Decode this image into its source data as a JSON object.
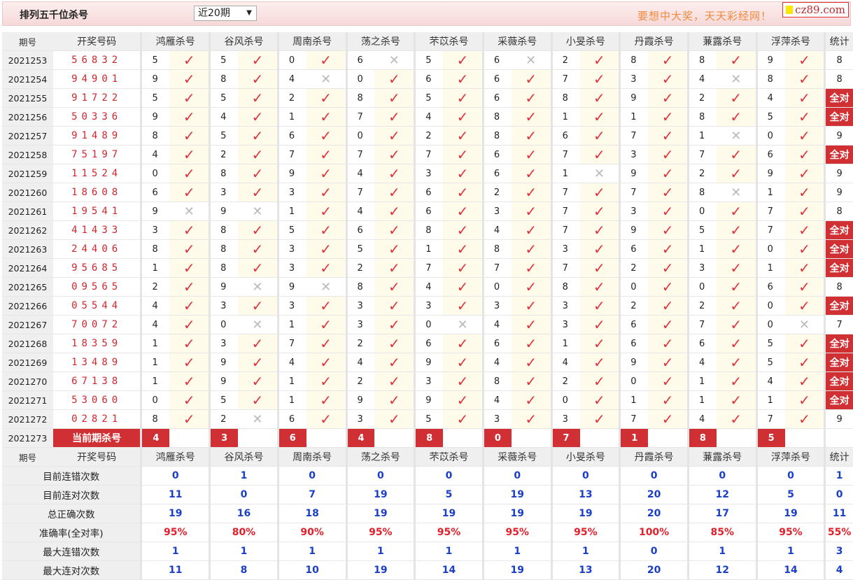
{
  "header": {
    "title": "排列五千位杀号",
    "period_select": "近20期",
    "slogan": "要想中大奖，天天彩经网！",
    "logo": "cz89.com"
  },
  "colors": {
    "accent_red": "#d03034",
    "check": "#e0323c",
    "stat_blue": "#1a3ec8"
  },
  "columns": {
    "issue": "期号",
    "draw": "开奖号码",
    "experts": [
      "鸿雁杀号",
      "谷风杀号",
      "周南杀号",
      "荡之杀号",
      "芣苡杀号",
      "采薇杀号",
      "小旻杀号",
      "丹霞杀号",
      "蒹露杀号",
      "浮萍杀号"
    ],
    "stat": "统计"
  },
  "rows": [
    {
      "issue": "2021253",
      "draw": "56832",
      "kills": [
        "5",
        "5",
        "0",
        "6",
        "5",
        "6",
        "2",
        "8",
        "8",
        "9"
      ],
      "ok": [
        1,
        1,
        1,
        0,
        1,
        0,
        1,
        1,
        1,
        1
      ],
      "stat": "8"
    },
    {
      "issue": "2021254",
      "draw": "94901",
      "kills": [
        "9",
        "8",
        "4",
        "0",
        "6",
        "6",
        "7",
        "3",
        "4",
        "8"
      ],
      "ok": [
        1,
        1,
        0,
        1,
        1,
        1,
        1,
        1,
        0,
        1
      ],
      "stat": "8"
    },
    {
      "issue": "2021255",
      "draw": "91722",
      "kills": [
        "5",
        "5",
        "2",
        "8",
        "5",
        "6",
        "8",
        "9",
        "2",
        "4"
      ],
      "ok": [
        1,
        1,
        1,
        1,
        1,
        1,
        1,
        1,
        1,
        1
      ],
      "stat": "全对"
    },
    {
      "issue": "2021256",
      "draw": "50336",
      "kills": [
        "9",
        "4",
        "1",
        "7",
        "4",
        "8",
        "1",
        "1",
        "8",
        "5"
      ],
      "ok": [
        1,
        1,
        1,
        1,
        1,
        1,
        1,
        1,
        1,
        1
      ],
      "stat": "全对"
    },
    {
      "issue": "2021257",
      "draw": "91489",
      "kills": [
        "8",
        "5",
        "6",
        "0",
        "2",
        "8",
        "6",
        "7",
        "1",
        "0"
      ],
      "ok": [
        1,
        1,
        1,
        1,
        1,
        1,
        1,
        1,
        0,
        1
      ],
      "stat": "9"
    },
    {
      "issue": "2021258",
      "draw": "75197",
      "kills": [
        "4",
        "2",
        "7",
        "7",
        "7",
        "6",
        "7",
        "3",
        "7",
        "6"
      ],
      "ok": [
        1,
        1,
        1,
        1,
        1,
        1,
        1,
        1,
        1,
        1
      ],
      "stat": "全对"
    },
    {
      "issue": "2021259",
      "draw": "11524",
      "kills": [
        "0",
        "8",
        "9",
        "4",
        "3",
        "6",
        "1",
        "9",
        "2",
        "9"
      ],
      "ok": [
        1,
        1,
        1,
        1,
        1,
        1,
        0,
        1,
        1,
        1
      ],
      "stat": "9"
    },
    {
      "issue": "2021260",
      "draw": "18608",
      "kills": [
        "6",
        "3",
        "3",
        "7",
        "6",
        "2",
        "7",
        "7",
        "8",
        "1"
      ],
      "ok": [
        1,
        1,
        1,
        1,
        1,
        1,
        1,
        1,
        0,
        1
      ],
      "stat": "9"
    },
    {
      "issue": "2021261",
      "draw": "19541",
      "kills": [
        "9",
        "9",
        "1",
        "4",
        "6",
        "3",
        "7",
        "3",
        "0",
        "7"
      ],
      "ok": [
        0,
        0,
        1,
        1,
        1,
        1,
        1,
        1,
        1,
        1
      ],
      "stat": "8"
    },
    {
      "issue": "2021262",
      "draw": "41433",
      "kills": [
        "3",
        "8",
        "5",
        "6",
        "8",
        "4",
        "7",
        "9",
        "5",
        "7"
      ],
      "ok": [
        1,
        1,
        1,
        1,
        1,
        1,
        1,
        1,
        1,
        1
      ],
      "stat": "全对"
    },
    {
      "issue": "2021263",
      "draw": "24406",
      "kills": [
        "8",
        "8",
        "3",
        "5",
        "1",
        "8",
        "3",
        "6",
        "1",
        "0"
      ],
      "ok": [
        1,
        1,
        1,
        1,
        1,
        1,
        1,
        1,
        1,
        1
      ],
      "stat": "全对"
    },
    {
      "issue": "2021264",
      "draw": "95685",
      "kills": [
        "1",
        "8",
        "3",
        "2",
        "7",
        "7",
        "7",
        "2",
        "3",
        "1"
      ],
      "ok": [
        1,
        1,
        1,
        1,
        1,
        1,
        1,
        1,
        1,
        1
      ],
      "stat": "全对"
    },
    {
      "issue": "2021265",
      "draw": "09565",
      "kills": [
        "2",
        "9",
        "9",
        "8",
        "4",
        "0",
        "8",
        "0",
        "0",
        "6"
      ],
      "ok": [
        1,
        0,
        0,
        1,
        1,
        1,
        1,
        1,
        1,
        1
      ],
      "stat": "8"
    },
    {
      "issue": "2021266",
      "draw": "05544",
      "kills": [
        "4",
        "3",
        "3",
        "3",
        "3",
        "3",
        "3",
        "2",
        "2",
        "0"
      ],
      "ok": [
        1,
        1,
        1,
        1,
        1,
        1,
        1,
        1,
        1,
        1
      ],
      "stat": "全对"
    },
    {
      "issue": "2021267",
      "draw": "70072",
      "kills": [
        "4",
        "0",
        "1",
        "3",
        "0",
        "4",
        "3",
        "6",
        "7",
        "0"
      ],
      "ok": [
        1,
        0,
        1,
        1,
        0,
        1,
        1,
        1,
        1,
        0
      ],
      "stat": "7"
    },
    {
      "issue": "2021268",
      "draw": "18359",
      "kills": [
        "1",
        "3",
        "7",
        "2",
        "6",
        "6",
        "1",
        "6",
        "6",
        "5"
      ],
      "ok": [
        1,
        1,
        1,
        1,
        1,
        1,
        1,
        1,
        1,
        1
      ],
      "stat": "全对"
    },
    {
      "issue": "2021269",
      "draw": "13489",
      "kills": [
        "1",
        "9",
        "4",
        "4",
        "9",
        "4",
        "4",
        "9",
        "4",
        "5"
      ],
      "ok": [
        1,
        1,
        1,
        1,
        1,
        1,
        1,
        1,
        1,
        1
      ],
      "stat": "全对"
    },
    {
      "issue": "2021270",
      "draw": "67138",
      "kills": [
        "1",
        "9",
        "1",
        "2",
        "3",
        "8",
        "2",
        "0",
        "1",
        "4"
      ],
      "ok": [
        1,
        1,
        1,
        1,
        1,
        1,
        1,
        1,
        1,
        1
      ],
      "stat": "全对"
    },
    {
      "issue": "2021271",
      "draw": "53060",
      "kills": [
        "0",
        "5",
        "1",
        "9",
        "9",
        "4",
        "0",
        "1",
        "1",
        "1"
      ],
      "ok": [
        1,
        1,
        1,
        1,
        1,
        1,
        1,
        1,
        1,
        1
      ],
      "stat": "全对"
    },
    {
      "issue": "2021272",
      "draw": "02821",
      "kills": [
        "8",
        "2",
        "6",
        "3",
        "5",
        "3",
        "3",
        "7",
        "4",
        "7"
      ],
      "ok": [
        1,
        0,
        1,
        1,
        1,
        1,
        1,
        1,
        1,
        1
      ],
      "stat": "9"
    }
  ],
  "current": {
    "issue": "2021273",
    "label": "当前期杀号",
    "kills": [
      "4",
      "3",
      "6",
      "4",
      "8",
      "0",
      "7",
      "1",
      "8",
      "5"
    ]
  },
  "marks": {
    "ok": "✓",
    "no": "✕"
  },
  "stats": [
    {
      "label": "目前连错次数",
      "values": [
        "0",
        "1",
        "0",
        "0",
        "0",
        "0",
        "0",
        "0",
        "0",
        "0",
        "1"
      ]
    },
    {
      "label": "目前连对次数",
      "values": [
        "11",
        "0",
        "7",
        "19",
        "5",
        "19",
        "13",
        "20",
        "12",
        "5",
        "0"
      ]
    },
    {
      "label": "总正确次数",
      "values": [
        "19",
        "16",
        "18",
        "19",
        "19",
        "19",
        "19",
        "20",
        "17",
        "19",
        "11"
      ]
    },
    {
      "label": "准确率(全对率)",
      "values": [
        "95%",
        "80%",
        "90%",
        "95%",
        "95%",
        "95%",
        "95%",
        "100%",
        "85%",
        "95%",
        "55%"
      ],
      "red": true
    },
    {
      "label": "最大连错次数",
      "values": [
        "1",
        "1",
        "1",
        "1",
        "1",
        "1",
        "1",
        "0",
        "1",
        "1",
        "3"
      ]
    },
    {
      "label": "最大连对次数",
      "values": [
        "11",
        "8",
        "10",
        "19",
        "14",
        "19",
        "13",
        "20",
        "12",
        "14",
        "4"
      ]
    }
  ]
}
